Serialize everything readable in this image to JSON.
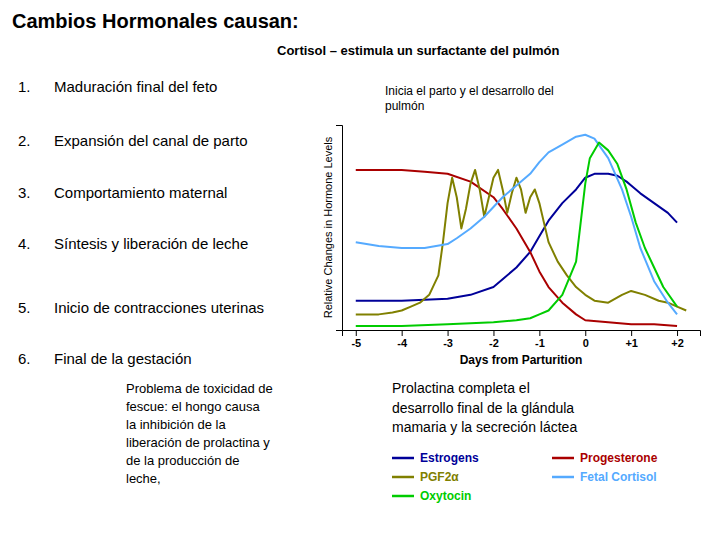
{
  "chart_data": {
    "type": "line",
    "title": "Cambios Hormonales causan:",
    "list_items": [
      {
        "number": "1.",
        "text": "Maduración final del feto"
      },
      {
        "number": "2.",
        "text": "Expansión del canal de parto"
      },
      {
        "number": "3.",
        "text": "Comportamiento maternal"
      },
      {
        "number": "4.",
        "text": "Síntesis y liberación de leche"
      },
      {
        "number": "5.",
        "text": "Inicio de contracciones uterinas"
      },
      {
        "number": "6.",
        "text": "Final de la gestación"
      }
    ],
    "annotations": [
      "Cortisol – estimula un surfactante del pulmón",
      "Inicia el parto y el desarrollo del\npulmón",
      "Problema de toxicidad de\nfescue:  el hongo causa\nla inhibición de la\nliberación de prolactina y\nde la producción de\nleche,",
      "Prolactina completa el\ndesarrollo final de la glándula\nmamaria y la secreción láctea"
    ],
    "xlabel": "Days from Parturition",
    "ylabel": "Relative Changes in Hormone Levels",
    "xlim": [
      -5.3,
      2.5
    ],
    "ylim": [
      0,
      1.05
    ],
    "xticks": [
      -5,
      -4,
      -3,
      -2,
      -1,
      0,
      {
        "value": 1,
        "label": "+1"
      },
      {
        "value": 2,
        "label": "+2"
      }
    ],
    "tick_labels": "x",
    "legend": "lower right",
    "series": [
      {
        "name": "Estrogens",
        "color": "#000099",
        "x": [
          -5,
          -4,
          -3,
          -2.5,
          -2,
          -1.8,
          -1.5,
          -1.2,
          -1.0,
          -0.8,
          -0.5,
          -0.2,
          0,
          0.2,
          0.5,
          0.7,
          0.9,
          1.0,
          1.2,
          1.5,
          1.8,
          2.0
        ],
        "values": [
          0.15,
          0.15,
          0.16,
          0.18,
          0.22,
          0.26,
          0.32,
          0.4,
          0.48,
          0.56,
          0.65,
          0.72,
          0.78,
          0.8,
          0.8,
          0.79,
          0.76,
          0.74,
          0.7,
          0.65,
          0.6,
          0.55
        ]
      },
      {
        "name": "Progesterone",
        "color": "#aa0000",
        "x": [
          -5,
          -4.5,
          -4,
          -3.5,
          -3,
          -2.5,
          -2.0,
          -1.8,
          -1.5,
          -1.2,
          -1.0,
          -0.8,
          -0.5,
          -0.2,
          0,
          0.5,
          1.0,
          1.5,
          2.0
        ],
        "values": [
          0.82,
          0.82,
          0.82,
          0.81,
          0.8,
          0.76,
          0.68,
          0.62,
          0.52,
          0.4,
          0.3,
          0.22,
          0.14,
          0.08,
          0.05,
          0.04,
          0.03,
          0.03,
          0.02
        ]
      },
      {
        "name": "PGF2α",
        "color": "#808000",
        "x": [
          -5.0,
          -4.5,
          -4.2,
          -4.0,
          -3.8,
          -3.6,
          -3.4,
          -3.2,
          -3.1,
          -3.0,
          -2.9,
          -2.8,
          -2.7,
          -2.6,
          -2.5,
          -2.4,
          -2.3,
          -2.2,
          -2.1,
          -2.0,
          -1.9,
          -1.8,
          -1.7,
          -1.6,
          -1.5,
          -1.4,
          -1.3,
          -1.2,
          -1.1,
          -1.0,
          -0.9,
          -0.8,
          -0.6,
          -0.4,
          -0.2,
          0.0,
          0.2,
          0.5,
          0.8,
          1.0,
          1.3,
          1.6,
          1.8,
          2.0,
          2.2
        ],
        "values": [
          0.08,
          0.08,
          0.09,
          0.1,
          0.12,
          0.14,
          0.18,
          0.28,
          0.45,
          0.65,
          0.78,
          0.68,
          0.52,
          0.62,
          0.75,
          0.82,
          0.72,
          0.58,
          0.68,
          0.78,
          0.82,
          0.72,
          0.6,
          0.7,
          0.78,
          0.72,
          0.6,
          0.68,
          0.72,
          0.65,
          0.55,
          0.45,
          0.35,
          0.28,
          0.22,
          0.18,
          0.15,
          0.14,
          0.18,
          0.2,
          0.18,
          0.15,
          0.14,
          0.12,
          0.1
        ]
      },
      {
        "name": "Fetal Cortisol",
        "color": "#55aaff",
        "x": [
          -5,
          -4.5,
          -4,
          -3.5,
          -3,
          -2.8,
          -2.5,
          -2.2,
          -2.0,
          -1.8,
          -1.5,
          -1.2,
          -1.0,
          -0.8,
          -0.5,
          -0.2,
          0,
          0.2,
          0.5,
          0.8,
          1.0,
          1.2,
          1.5,
          1.8,
          2.0
        ],
        "values": [
          0.45,
          0.43,
          0.42,
          0.42,
          0.44,
          0.47,
          0.52,
          0.58,
          0.63,
          0.68,
          0.74,
          0.8,
          0.86,
          0.91,
          0.95,
          0.99,
          1.0,
          0.98,
          0.88,
          0.72,
          0.58,
          0.42,
          0.25,
          0.14,
          0.08
        ]
      },
      {
        "name": "Oxytocin",
        "color": "#00cc00",
        "x": [
          -5,
          -4,
          -3,
          -2,
          -1.5,
          -1.2,
          -1.0,
          -0.8,
          -0.5,
          -0.2,
          0,
          0.1,
          0.3,
          0.5,
          0.7,
          0.9,
          1.1,
          1.3,
          1.5,
          1.7,
          2.0
        ],
        "values": [
          0.02,
          0.02,
          0.03,
          0.04,
          0.05,
          0.06,
          0.08,
          0.1,
          0.18,
          0.35,
          0.75,
          0.88,
          0.96,
          0.92,
          0.85,
          0.72,
          0.55,
          0.42,
          0.32,
          0.22,
          0.12
        ]
      }
    ]
  }
}
